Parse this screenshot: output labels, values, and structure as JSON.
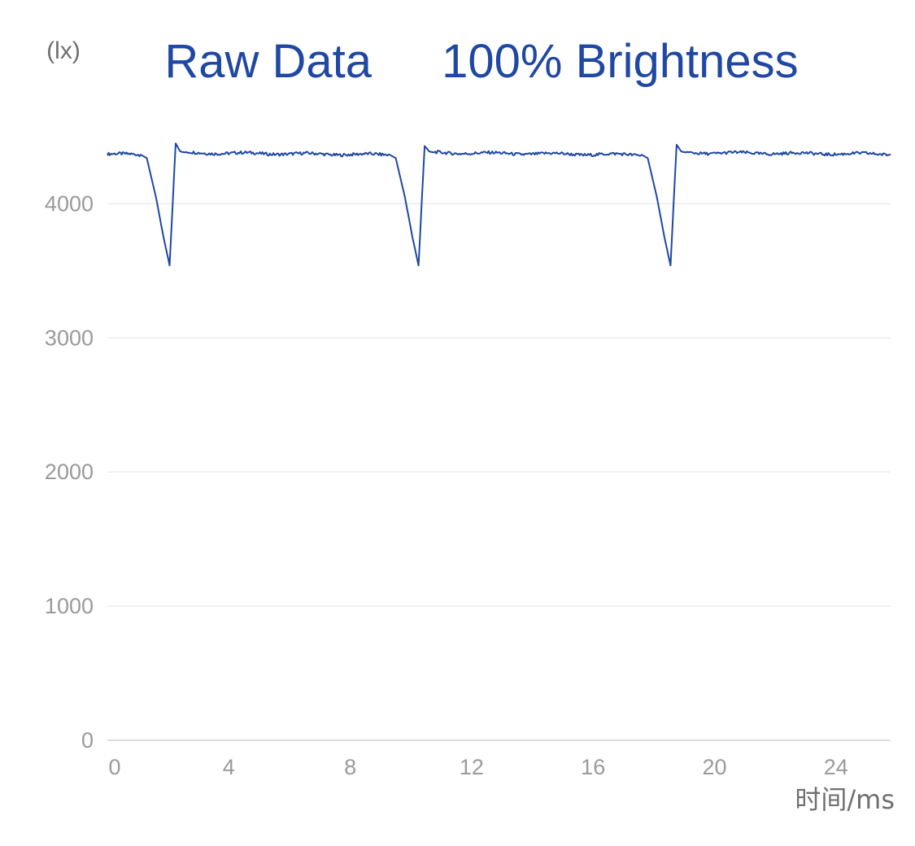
{
  "chart_data": {
    "type": "line",
    "title_parts": [
      "Raw Data",
      "100% Brightness"
    ],
    "ylabel": "(lx)",
    "xlabel": "时间/ms",
    "xlim": [
      0,
      25.8
    ],
    "ylim": [
      0,
      4500
    ],
    "xticks": [
      0,
      4,
      8,
      12,
      16,
      20,
      24
    ],
    "yticks": [
      0,
      1000,
      2000,
      3000,
      4000
    ],
    "grid": true,
    "series": [
      {
        "color": "#1f47a3",
        "baseline": 4380,
        "x": [
          0,
          1.1,
          1.3,
          1.6,
          1.85,
          2.05,
          2.25,
          2.4,
          2.6,
          9.3,
          9.5,
          9.8,
          10.05,
          10.25,
          10.45,
          10.6,
          10.8,
          17.6,
          17.8,
          18.1,
          18.35,
          18.55,
          18.75,
          18.9,
          19.1,
          25.8
        ],
        "y": [
          4370,
          4365,
          4340,
          4050,
          3750,
          3540,
          4450,
          4390,
          4380,
          4365,
          4340,
          4050,
          3750,
          3540,
          4430,
          4390,
          4380,
          4365,
          4340,
          4050,
          3750,
          3540,
          4440,
          4390,
          4380,
          4370
        ]
      }
    ],
    "colors": {
      "title": "#1f47a3",
      "grid": "#ececec",
      "axis": "#dcdcdc",
      "tick": "#9a9a9a"
    }
  }
}
